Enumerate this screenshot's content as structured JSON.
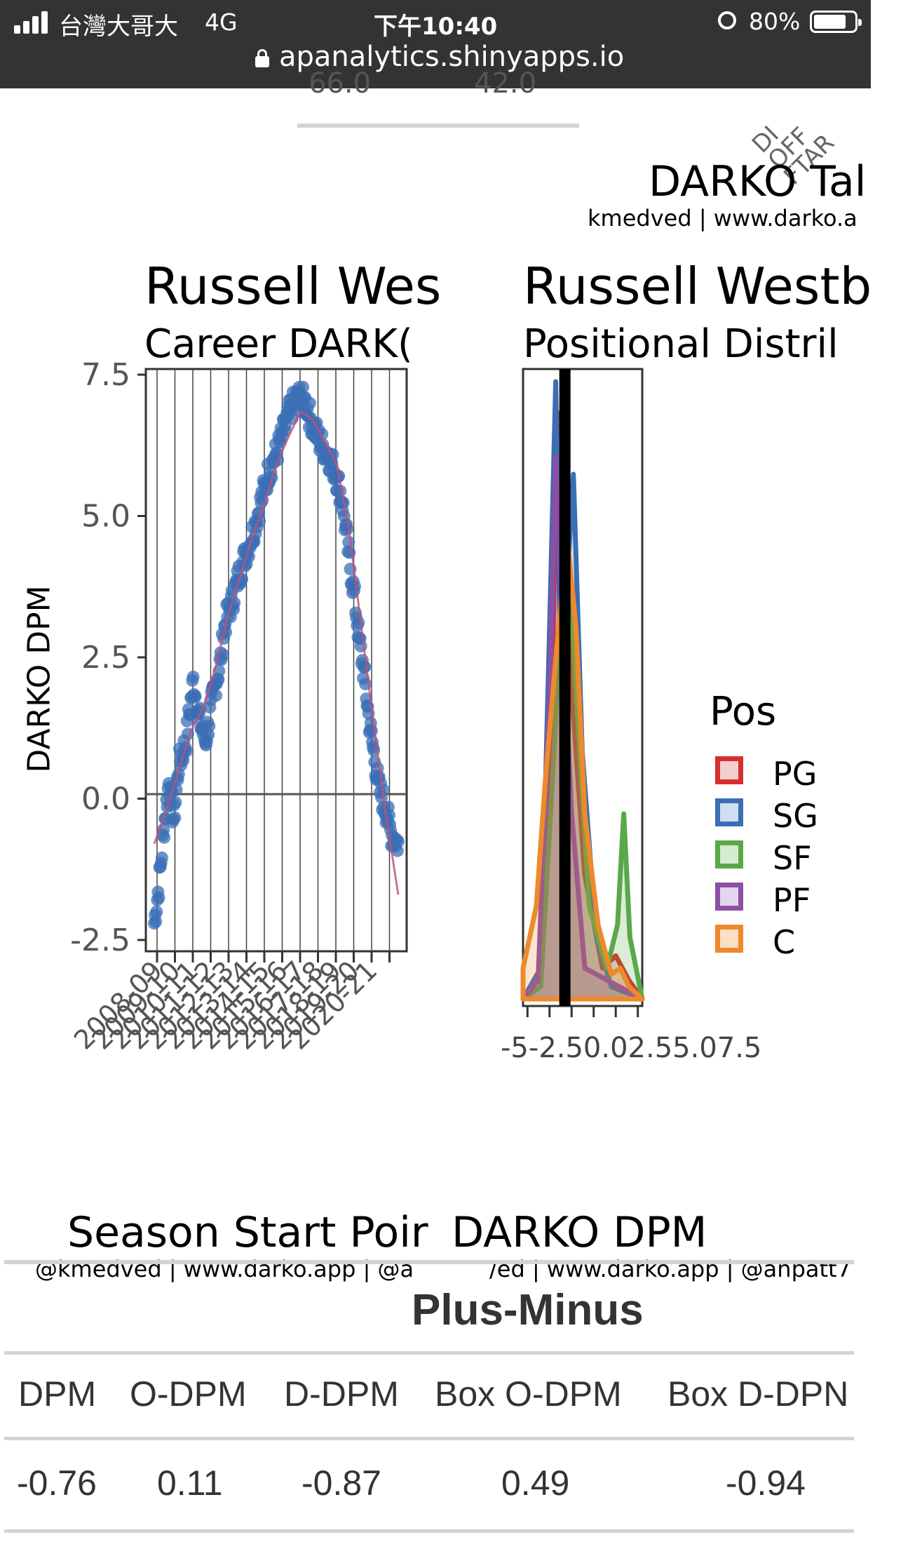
{
  "status_bar": {
    "carrier": "台灣大哥大",
    "network": "4G",
    "time": "下午10:40",
    "battery": "80%",
    "battery_level": 0.8,
    "url": "apanalytics.shinyapps.io"
  },
  "top_partial": {
    "left_value": "66.0",
    "right_value": "42.0",
    "corner_label_lines": [
      "DI",
      "OFF",
      "FTAR"
    ]
  },
  "right_card": {
    "title": "DARKO Tal",
    "byline": "kmedved | www.darko.a"
  },
  "career_chart": {
    "title": "Russell Wes",
    "subtitle": "Career DARK(",
    "ylabel": "DARKO DPM",
    "xlabel": "Season Start Poir",
    "credit": "@kmedved | www.darko.app | @a"
  },
  "positional_chart": {
    "title": "Russell Westb",
    "subtitle": "Positional Distril",
    "xlabel": "DARKO DPM",
    "credit": "/ed | www.darko.app | @anpatt7",
    "x_ticks_text": "-5-2.50.02.55.07.5",
    "legend_title": "Pos"
  },
  "chart_data": [
    {
      "type": "scatter",
      "title": "Russell Wes",
      "subtitle": "Career DARK(",
      "xlabel": "Season Start Poir",
      "ylabel": "DARKO DPM",
      "ylim": [
        -2.7,
        7.6
      ],
      "y_ticks": [
        "7.5",
        "5.0",
        "2.5",
        "0.0",
        "-2.5"
      ],
      "x_ticks_text": "2008-09 through 2020-21 (overlapping)",
      "grid": "vertical lines at season starts",
      "point_color": "#3b6fb6",
      "trend_color": "#c0507a",
      "trend": [
        [
          0.0,
          -0.8
        ],
        [
          0.05,
          -0.2
        ],
        [
          0.1,
          0.5
        ],
        [
          0.15,
          1.2
        ],
        [
          0.2,
          1.6
        ],
        [
          0.25,
          2.3
        ],
        [
          0.3,
          3.2
        ],
        [
          0.35,
          3.9
        ],
        [
          0.4,
          4.6
        ],
        [
          0.45,
          5.2
        ],
        [
          0.5,
          5.9
        ],
        [
          0.55,
          6.4
        ],
        [
          0.6,
          6.85
        ],
        [
          0.65,
          6.7
        ],
        [
          0.7,
          6.3
        ],
        [
          0.75,
          5.9
        ],
        [
          0.8,
          4.7
        ],
        [
          0.85,
          3.0
        ],
        [
          0.9,
          1.3
        ],
        [
          0.95,
          -0.3
        ],
        [
          1.0,
          -1.7
        ]
      ],
      "points_profile": [
        [
          0.0,
          -2.2
        ],
        [
          0.02,
          -1.5
        ],
        [
          0.04,
          -0.5
        ],
        [
          0.06,
          0.3
        ],
        [
          0.08,
          -0.4
        ],
        [
          0.1,
          0.6
        ],
        [
          0.13,
          1.0
        ],
        [
          0.16,
          2.1
        ],
        [
          0.18,
          1.5
        ],
        [
          0.21,
          1.0
        ],
        [
          0.24,
          1.8
        ],
        [
          0.27,
          2.4
        ],
        [
          0.29,
          3.1
        ],
        [
          0.32,
          3.5
        ],
        [
          0.35,
          4.0
        ],
        [
          0.38,
          4.4
        ],
        [
          0.41,
          4.8
        ],
        [
          0.44,
          5.3
        ],
        [
          0.47,
          5.8
        ],
        [
          0.5,
          6.1
        ],
        [
          0.53,
          6.5
        ],
        [
          0.56,
          6.9
        ],
        [
          0.59,
          7.1
        ],
        [
          0.62,
          7.0
        ],
        [
          0.65,
          6.6
        ],
        [
          0.68,
          6.3
        ],
        [
          0.71,
          6.1
        ],
        [
          0.74,
          5.8
        ],
        [
          0.77,
          5.3
        ],
        [
          0.8,
          4.2
        ],
        [
          0.82,
          3.6
        ],
        [
          0.84,
          2.8
        ],
        [
          0.86,
          2.2
        ],
        [
          0.88,
          1.4
        ],
        [
          0.9,
          0.8
        ],
        [
          0.92,
          0.2
        ],
        [
          0.95,
          -0.2
        ],
        [
          0.97,
          -0.6
        ],
        [
          1.0,
          -0.8
        ]
      ]
    },
    {
      "type": "area",
      "title": "Russell Westb",
      "subtitle": "Positional Distril",
      "xlabel": "DARKO DPM",
      "x_ticks": [
        "-5",
        "-2.5",
        "0.0",
        "2.5",
        "5.0",
        "7.5"
      ],
      "xlim": [
        -5.5,
        8.0
      ],
      "marker_x": -0.76,
      "legend_title": "Pos",
      "legend_position": "right",
      "series": [
        {
          "name": "PG",
          "color": "#d62f2f",
          "points": [
            [
              -5.5,
              0
            ],
            [
              -3.5,
              0.02
            ],
            [
              -2.5,
              0.3
            ],
            [
              -1.6,
              0.95
            ],
            [
              -1,
              0.9
            ],
            [
              0,
              0.5
            ],
            [
              1.5,
              0.2
            ],
            [
              3.5,
              0.05
            ],
            [
              5,
              0.07
            ],
            [
              6.5,
              0.03
            ],
            [
              8,
              0
            ]
          ]
        },
        {
          "name": "SG",
          "color": "#3a6eb5",
          "points": [
            [
              -5.5,
              0
            ],
            [
              -3.5,
              0.05
            ],
            [
              -2.5,
              0.6
            ],
            [
              -1.8,
              1.0
            ],
            [
              -1.2,
              0.5
            ],
            [
              0.2,
              0.85
            ],
            [
              1.2,
              0.4
            ],
            [
              2.8,
              0.1
            ],
            [
              4.5,
              0.02
            ],
            [
              8,
              0
            ]
          ]
        },
        {
          "name": "SF",
          "color": "#5aa84a",
          "points": [
            [
              -5.5,
              0
            ],
            [
              -3.5,
              0.02
            ],
            [
              -2,
              0.4
            ],
            [
              -0.6,
              0.8
            ],
            [
              0.5,
              0.5
            ],
            [
              2,
              0.15
            ],
            [
              4,
              0.05
            ],
            [
              5.2,
              0.12
            ],
            [
              5.9,
              0.3
            ],
            [
              6.6,
              0.1
            ],
            [
              8,
              0
            ]
          ]
        },
        {
          "name": "PF",
          "color": "#8c4fa6",
          "points": [
            [
              -5.5,
              0
            ],
            [
              -3.8,
              0.03
            ],
            [
              -2.5,
              0.5
            ],
            [
              -1.8,
              0.88
            ],
            [
              -1,
              0.6
            ],
            [
              0,
              0.3
            ],
            [
              1.5,
              0.05
            ],
            [
              8,
              0
            ]
          ]
        },
        {
          "name": "C",
          "color": "#ee8a2c",
          "points": [
            [
              -5.5,
              0.05
            ],
            [
              -4,
              0.15
            ],
            [
              -3,
              0.35
            ],
            [
              -1.8,
              0.55
            ],
            [
              -0.5,
              0.75
            ],
            [
              0.5,
              0.6
            ],
            [
              1.5,
              0.3
            ],
            [
              3,
              0.12
            ],
            [
              4.5,
              0.04
            ],
            [
              5.5,
              0.05
            ],
            [
              6.5,
              0.02
            ],
            [
              8,
              0
            ]
          ]
        }
      ]
    }
  ],
  "table": {
    "group_header": "Plus-Minus",
    "columns": [
      "DPM",
      "O-DPM",
      "D-DPM",
      "Box O-DPM",
      "Box D-DPN"
    ],
    "rows": [
      [
        "-0.76",
        "0.11",
        "-0.87",
        "0.49",
        "-0.94"
      ]
    ]
  }
}
